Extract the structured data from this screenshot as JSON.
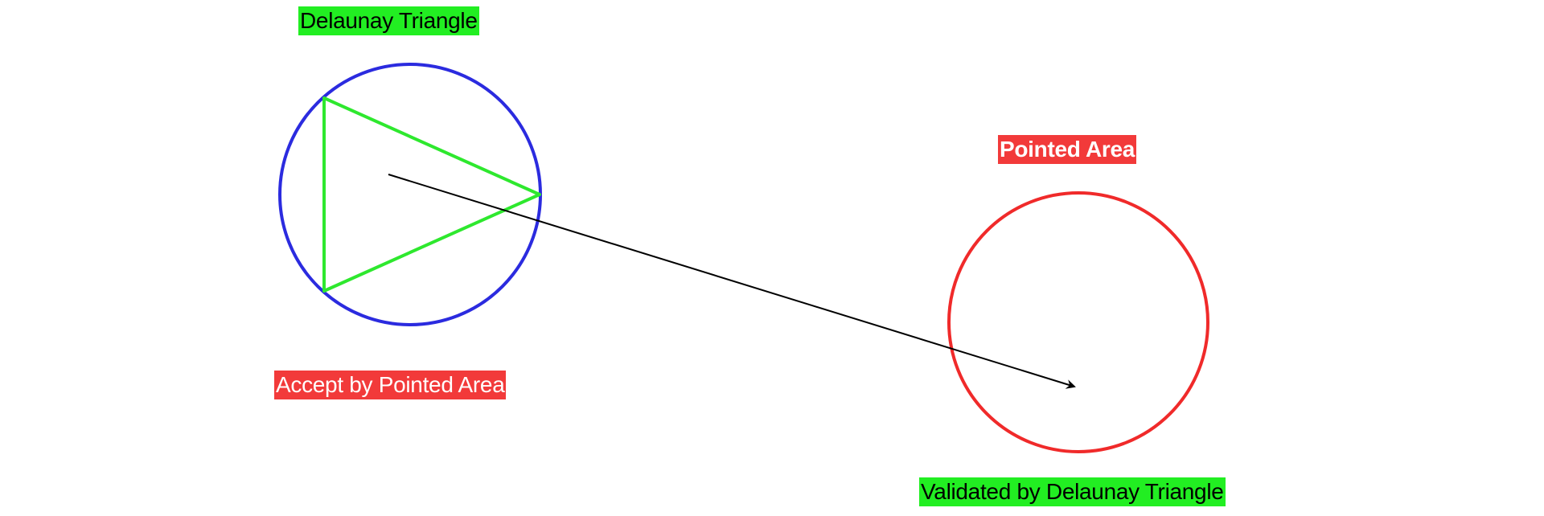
{
  "labels": {
    "delaunay_triangle": "Delaunay Triangle",
    "pointed_area": "Pointed Area",
    "accept_by_pointed_area": "Accept by Pointed Area",
    "validated_by_delaunay_triangle": "Validated by Delaunay Triangle"
  },
  "colors": {
    "circumcircle": "#2b2bdf",
    "triangle": "#2ee82e",
    "pointed_area_circle": "#f02a2a",
    "arrow": "#000000",
    "green_highlight": "#22ee22",
    "red_highlight": "#f23a3a"
  }
}
